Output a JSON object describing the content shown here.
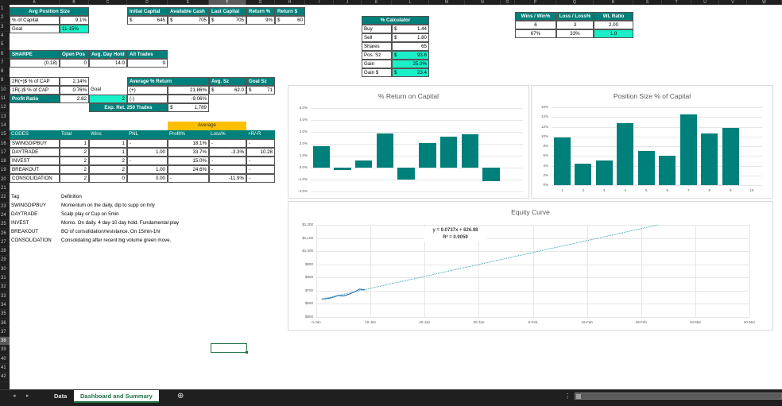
{
  "columns": [
    "A",
    "B",
    "C",
    "D",
    "E",
    "F",
    "G",
    "H",
    "I",
    "J",
    "K",
    "L",
    "M",
    "N",
    "O",
    "P",
    "Q",
    "R",
    "S",
    "T",
    "U",
    "V",
    "W"
  ],
  "selected_column": "F",
  "selected_row": "38",
  "rows": [
    "1",
    "2",
    "3",
    "4",
    "5",
    "6",
    "7",
    "8",
    "9",
    "10",
    "11",
    "12",
    "13",
    "14",
    "15",
    "16",
    "17",
    "18",
    "19",
    "20",
    "21",
    "22",
    "23",
    "24",
    "25",
    "26",
    "27",
    "28",
    "29",
    "30",
    "31",
    "32",
    "33",
    "34",
    "35",
    "36",
    "37",
    "38",
    "39",
    "40",
    "41",
    "42"
  ],
  "avg_position": {
    "title": "Avg Position Size",
    "pct_label": "% of Capital",
    "pct_value": "9.1%",
    "goal_label": "Goal",
    "goal_value": "11-15%"
  },
  "capital": {
    "headers": [
      "Initial Capital",
      "Available Cash",
      "Last Capital",
      "Return %",
      "Return $"
    ],
    "currency": "$",
    "initial": "645",
    "available": "705",
    "last": "705",
    "return_pct": "9%",
    "return_usd": "60"
  },
  "sharpe_row": {
    "headers": [
      "SHARPE",
      "Open Pos",
      "Avg. Day Hold",
      "All Trades"
    ],
    "values": [
      "(0.18)",
      "0",
      "14.0",
      "9"
    ]
  },
  "ratios": {
    "r2_label": "2R(+)$ % of CAP",
    "r2_value": "2.14%",
    "r1_label": "1R(-)$ % of CAP",
    "r1_value": "0.76%",
    "goal_label": "Goal",
    "profit_ratio_label": "Profit Ratio",
    "profit_ratio_value": "2.82",
    "goal_value": "2"
  },
  "avg_return": {
    "title": "Average % Return",
    "plus_label": "(+)",
    "plus_value": "21.86%",
    "minus_label": "(-)",
    "minus_value": "-9.06%",
    "exp_label": "Exp. Ret. 250 Trades",
    "exp_currency": "$",
    "exp_value": "1,789",
    "avg_sz_label": "Avg. Sz",
    "avg_sz_currency": "$",
    "avg_sz_value": "62.0",
    "goal_sz_label": "Goal Sz",
    "goal_sz_currency": "$",
    "goal_sz_value": "71"
  },
  "codes_table": {
    "average_label": "Average",
    "headers": [
      "CODES",
      "Total",
      "Wins",
      "PNL",
      "Profit%",
      "Loss%",
      "+R/-R"
    ],
    "rows": [
      {
        "code": "SWINGDIPBUY",
        "total": "1",
        "wins": "1",
        "pnl": "-",
        "profit": "18.1%",
        "loss": "-",
        "rr": "-"
      },
      {
        "code": "DAYTRADE",
        "total": "2",
        "wins": "1",
        "pnl": "1.00",
        "profit": "33.7%",
        "loss": "-3.3%",
        "rr": "10.28"
      },
      {
        "code": "INVEST",
        "total": "2",
        "wins": "2",
        "pnl": "-",
        "profit": "15.0%",
        "loss": "-",
        "rr": "-"
      },
      {
        "code": "BREAKOUT",
        "total": "2",
        "wins": "2",
        "pnl": "1.00",
        "profit": "24.6%",
        "loss": "-",
        "rr": "-"
      },
      {
        "code": "CONSOLIDATION",
        "total": "2",
        "wins": "0",
        "pnl": "0.00",
        "profit": "-",
        "loss": "-11.9%",
        "rr": "-"
      }
    ]
  },
  "definitions": {
    "tag_header": "Tag",
    "def_header": "Definition",
    "rows": [
      {
        "tag": "SWINGDIPBUY",
        "def": "Momentum on the daily, dip to supp on hrly"
      },
      {
        "tag": "DAYTRADE",
        "def": "Scalp play or Cup on 5min"
      },
      {
        "tag": "INVEST",
        "def": "Momo. On daily. 4 day-10 day hold. Fundamental play"
      },
      {
        "tag": "BREAKOUT",
        "def": "BO of consolidation/resistance. On 15min-1hr"
      },
      {
        "tag": "CONSOLIDATION",
        "def": "Consolidating after recent big volume green move."
      }
    ]
  },
  "calculator": {
    "title": "% Calculator",
    "rows": [
      {
        "label": "Buy",
        "cur": "$",
        "value": "1.44"
      },
      {
        "label": "Sell",
        "cur": "$",
        "value": "1.80"
      },
      {
        "label": "Shares",
        "cur": "",
        "value": "65"
      },
      {
        "label": "Pos. Sz",
        "cur": "$",
        "value": "93.6"
      },
      {
        "label": "Gain",
        "cur": "",
        "value": "25.0%"
      },
      {
        "label": "Gain $",
        "cur": "$",
        "value": "23.4"
      }
    ]
  },
  "winloss": {
    "headers": [
      "Wins / Win%",
      "Loss / Loss%",
      "WL Ratio"
    ],
    "row1": [
      "6",
      "3",
      "2.00"
    ],
    "row2": [
      "67%",
      "33%",
      "1.0"
    ]
  },
  "chart_data": [
    {
      "type": "bar",
      "title": "% Return on Capital",
      "categories": [
        "1",
        "2",
        "3",
        "4",
        "5",
        "6",
        "7",
        "8",
        "9",
        "10"
      ],
      "values": [
        1.8,
        -0.2,
        0.6,
        2.9,
        -1.0,
        2.1,
        2.6,
        2.8,
        -1.1,
        null
      ],
      "yticks": [
        "5.0%",
        "4.0%",
        "3.0%",
        "2.0%",
        "1.0%",
        "0.0%",
        "-1.0%",
        "-2.0%"
      ],
      "ylim": [
        -2.0,
        5.0
      ],
      "xlabel": "",
      "ylabel": "",
      "grid": true,
      "color": "#00807a"
    },
    {
      "type": "bar",
      "title": "Position Size % of Capital",
      "categories": [
        "1",
        "2",
        "3",
        "4",
        "5",
        "6",
        "7",
        "8",
        "9",
        "10"
      ],
      "values": [
        9.8,
        4.4,
        5.0,
        12.7,
        7.0,
        6.1,
        14.5,
        10.6,
        11.8,
        null
      ],
      "yticks": [
        "16%",
        "14%",
        "12%",
        "10%",
        "8%",
        "6%",
        "4%",
        "2%",
        "0%"
      ],
      "ylim": [
        0,
        16
      ],
      "xlabel": "",
      "ylabel": "",
      "grid": true,
      "color": "#00807a"
    },
    {
      "type": "line",
      "title": "Equity Curve",
      "x": [
        "1-Jan",
        "2-Jan",
        "3-Jan",
        "4-Jan",
        "5-Jan",
        "6-Jan",
        "7-Jan",
        "8-Jan",
        "9-Jan"
      ],
      "values": [
        636,
        640,
        648,
        663,
        660,
        672,
        690,
        712,
        705
      ],
      "trendline": {
        "equation": "y = 9.0737x + 626.98",
        "r2": "R² = 0.9059",
        "slope": 9.0737,
        "intercept": 626.98,
        "x_end_day": 63
      },
      "xticks": [
        "0-Jan",
        "10-Jan",
        "20-Jan",
        "30-Jan",
        "9-Feb",
        "19-Feb",
        "29-Feb",
        "10-Mar",
        "20-Mar"
      ],
      "yticks": [
        "$1,200",
        "$1,100",
        "$1,000",
        "$900",
        "$800",
        "$700",
        "$600",
        "$500"
      ],
      "ylim": [
        500,
        1200
      ],
      "xlabel": "",
      "ylabel": "",
      "grid": true,
      "color": "#2e75b6"
    }
  ],
  "tabs": {
    "items": [
      "Data",
      "Dashboard and Summary"
    ],
    "active": "Dashboard and Summary",
    "add_label": "⊕",
    "prev_label": "◂",
    "next_label": "▸",
    "more_label": "⋮"
  }
}
